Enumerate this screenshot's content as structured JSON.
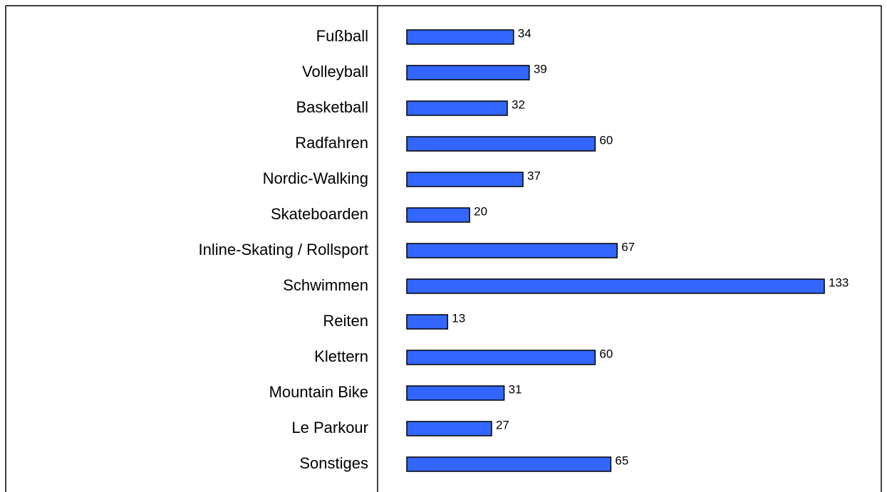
{
  "chart_data": {
    "type": "bar",
    "orientation": "horizontal",
    "categories": [
      "Fußball",
      "Volleyball",
      "Basketball",
      "Radfahren",
      "Nordic-Walking",
      "Skateboarden",
      "Inline-Skating / Rollsport",
      "Schwimmen",
      "Reiten",
      "Klettern",
      "Mountain Bike",
      "Le Parkour",
      "Sonstiges"
    ],
    "values": [
      34,
      39,
      32,
      60,
      37,
      20,
      67,
      133,
      13,
      60,
      31,
      27,
      65
    ],
    "color": "#3366ff"
  }
}
